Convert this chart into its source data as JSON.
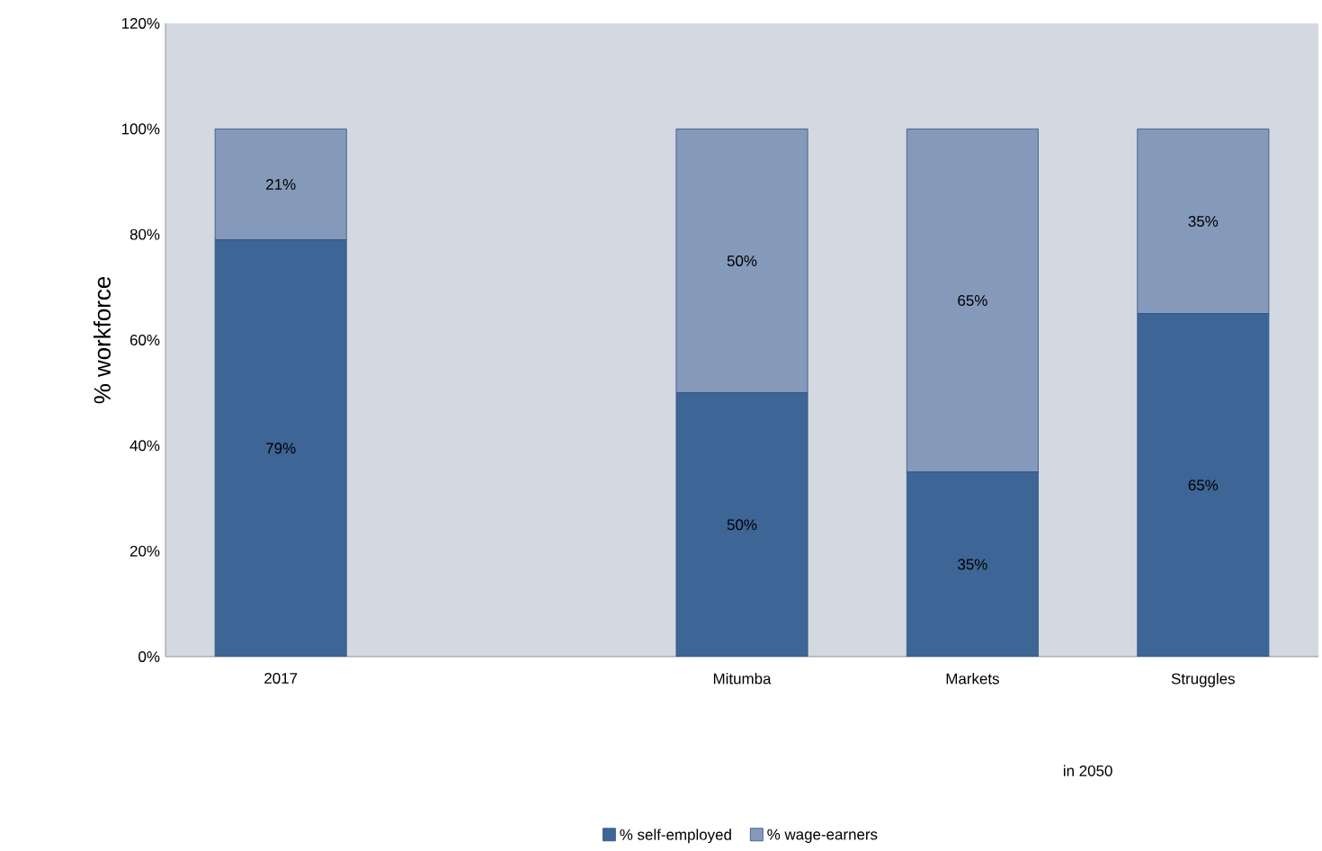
{
  "chart_data": {
    "type": "bar",
    "stacked": true,
    "categories": [
      "2017",
      null,
      "Mitumba",
      "Markets",
      "Struggles"
    ],
    "series": [
      {
        "name": "% self-employed",
        "color": "#3d6697",
        "values": [
          79,
          null,
          50,
          35,
          65
        ],
        "value_labels": [
          "79%",
          null,
          "50%",
          "35%",
          "65%"
        ]
      },
      {
        "name": "% wage-earners",
        "color": "#8599bb",
        "values": [
          21,
          null,
          50,
          65,
          35
        ],
        "value_labels": [
          "21%",
          null,
          "50%",
          "65%",
          "35%"
        ]
      }
    ],
    "ylabel": "% workforce",
    "ylim": [
      0,
      120
    ],
    "yticks": [
      {
        "value": 0,
        "label": "0%"
      },
      {
        "value": 20,
        "label": "20%"
      },
      {
        "value": 40,
        "label": "40%"
      },
      {
        "value": 60,
        "label": "60%"
      },
      {
        "value": 80,
        "label": "80%"
      },
      {
        "value": 100,
        "label": "100%"
      },
      {
        "value": 120,
        "label": "120%"
      }
    ],
    "annotations": [
      "in 2050"
    ],
    "legend": "bottom",
    "grid": false
  }
}
